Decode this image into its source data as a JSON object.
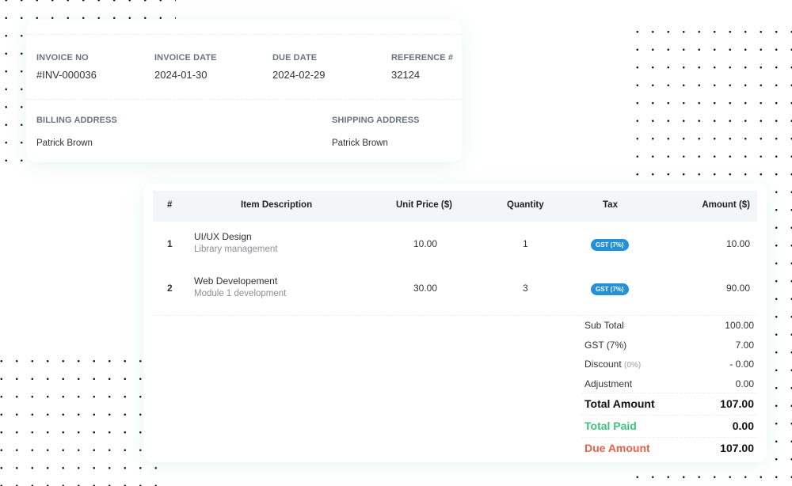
{
  "invoice_meta": [
    {
      "label": "INVOICE NO",
      "value": "#INV-000036"
    },
    {
      "label": "INVOICE DATE",
      "value": "2024-01-30"
    },
    {
      "label": "DUE DATE",
      "value": "2024-02-29"
    },
    {
      "label": "REFERENCE #",
      "value": "32124"
    }
  ],
  "billing": {
    "label": "BILLING ADDRESS",
    "name": "Patrick Brown"
  },
  "shipping": {
    "label": "SHIPPING ADDRESS",
    "name": "Patrick Brown"
  },
  "table": {
    "headers": [
      "#",
      "Item Description",
      "Unit Price ($)",
      "Quantity",
      "Tax",
      "Amount ($)"
    ],
    "rows": [
      {
        "num": "1",
        "title": "UI/UX Design",
        "desc": "Library management",
        "price": "10.00",
        "qty": "1",
        "tax": "GST (7%)",
        "amount": "10.00"
      },
      {
        "num": "2",
        "title": "Web Developement",
        "desc": "Module 1 development",
        "price": "30.00",
        "qty": "3",
        "tax": "GST (7%)",
        "amount": "90.00"
      }
    ]
  },
  "totals": {
    "sub_total": {
      "label": "Sub Total",
      "value": "100.00"
    },
    "gst": {
      "label": "GST (7%)",
      "value": "7.00"
    },
    "discount": {
      "label": "Discount",
      "note": "(0%)",
      "value": "- 0.00"
    },
    "adjustment": {
      "label": "Adjustment",
      "value": "0.00"
    },
    "total_amount": {
      "label": "Total Amount",
      "value": "107.00"
    },
    "total_paid": {
      "label": "Total Paid",
      "value": "0.00"
    },
    "due_amount": {
      "label": "Due Amount",
      "value": "107.00"
    }
  },
  "colors": {
    "badge": "#2490d8",
    "paid": "#3cc47c",
    "due": "#e8604a"
  }
}
